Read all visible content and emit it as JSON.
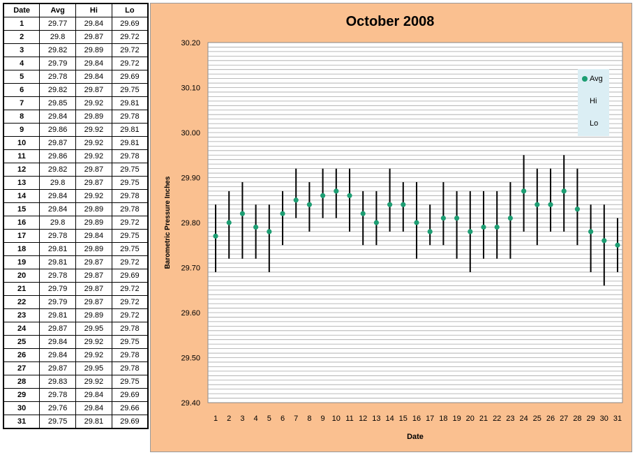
{
  "table": {
    "headers": [
      "Date",
      "Avg",
      "Hi",
      "Lo"
    ],
    "rows": [
      [
        "1",
        "29.77",
        "29.84",
        "29.69"
      ],
      [
        "2",
        "29.8",
        "29.87",
        "29.72"
      ],
      [
        "3",
        "29.82",
        "29.89",
        "29.72"
      ],
      [
        "4",
        "29.79",
        "29.84",
        "29.72"
      ],
      [
        "5",
        "29.78",
        "29.84",
        "29.69"
      ],
      [
        "6",
        "29.82",
        "29.87",
        "29.75"
      ],
      [
        "7",
        "29.85",
        "29.92",
        "29.81"
      ],
      [
        "8",
        "29.84",
        "29.89",
        "29.78"
      ],
      [
        "9",
        "29.86",
        "29.92",
        "29.81"
      ],
      [
        "10",
        "29.87",
        "29.92",
        "29.81"
      ],
      [
        "11",
        "29.86",
        "29.92",
        "29.78"
      ],
      [
        "12",
        "29.82",
        "29.87",
        "29.75"
      ],
      [
        "13",
        "29.8",
        "29.87",
        "29.75"
      ],
      [
        "14",
        "29.84",
        "29.92",
        "29.78"
      ],
      [
        "15",
        "29.84",
        "29.89",
        "29.78"
      ],
      [
        "16",
        "29.8",
        "29.89",
        "29.72"
      ],
      [
        "17",
        "29.78",
        "29.84",
        "29.75"
      ],
      [
        "18",
        "29.81",
        "29.89",
        "29.75"
      ],
      [
        "19",
        "29.81",
        "29.87",
        "29.72"
      ],
      [
        "20",
        "29.78",
        "29.87",
        "29.69"
      ],
      [
        "21",
        "29.79",
        "29.87",
        "29.72"
      ],
      [
        "22",
        "29.79",
        "29.87",
        "29.72"
      ],
      [
        "23",
        "29.81",
        "29.89",
        "29.72"
      ],
      [
        "24",
        "29.87",
        "29.95",
        "29.78"
      ],
      [
        "25",
        "29.84",
        "29.92",
        "29.75"
      ],
      [
        "26",
        "29.84",
        "29.92",
        "29.78"
      ],
      [
        "27",
        "29.87",
        "29.95",
        "29.78"
      ],
      [
        "28",
        "29.83",
        "29.92",
        "29.75"
      ],
      [
        "29",
        "29.78",
        "29.84",
        "29.69"
      ],
      [
        "30",
        "29.76",
        "29.84",
        "29.66"
      ],
      [
        "31",
        "29.75",
        "29.81",
        "29.69"
      ]
    ]
  },
  "chart_data": {
    "type": "scatter",
    "title": "October 2008",
    "xlabel": "Date",
    "ylabel": "Barometric Pressure Inches",
    "ylim": [
      29.4,
      30.2
    ],
    "yticks": [
      "29.40",
      "29.50",
      "29.60",
      "29.70",
      "29.80",
      "29.90",
      "30.00",
      "30.10",
      "30.20"
    ],
    "x": [
      1,
      2,
      3,
      4,
      5,
      6,
      7,
      8,
      9,
      10,
      11,
      12,
      13,
      14,
      15,
      16,
      17,
      18,
      19,
      20,
      21,
      22,
      23,
      24,
      25,
      26,
      27,
      28,
      29,
      30,
      31
    ],
    "series": [
      {
        "name": "Avg",
        "values": [
          29.77,
          29.8,
          29.82,
          29.79,
          29.78,
          29.82,
          29.85,
          29.84,
          29.86,
          29.87,
          29.86,
          29.82,
          29.8,
          29.84,
          29.84,
          29.8,
          29.78,
          29.81,
          29.81,
          29.78,
          29.79,
          29.79,
          29.81,
          29.87,
          29.84,
          29.84,
          29.87,
          29.83,
          29.78,
          29.76,
          29.75
        ]
      },
      {
        "name": "Hi",
        "values": [
          29.84,
          29.87,
          29.89,
          29.84,
          29.84,
          29.87,
          29.92,
          29.89,
          29.92,
          29.92,
          29.92,
          29.87,
          29.87,
          29.92,
          29.89,
          29.89,
          29.84,
          29.89,
          29.87,
          29.87,
          29.87,
          29.87,
          29.89,
          29.95,
          29.92,
          29.92,
          29.95,
          29.92,
          29.84,
          29.84,
          29.81
        ]
      },
      {
        "name": "Lo",
        "values": [
          29.69,
          29.72,
          29.72,
          29.72,
          29.69,
          29.75,
          29.81,
          29.78,
          29.81,
          29.81,
          29.78,
          29.75,
          29.75,
          29.78,
          29.78,
          29.72,
          29.75,
          29.75,
          29.72,
          29.69,
          29.72,
          29.72,
          29.72,
          29.78,
          29.75,
          29.78,
          29.78,
          29.75,
          29.69,
          29.66,
          29.69
        ]
      }
    ],
    "legend": [
      "Avg",
      "Hi",
      "Lo"
    ],
    "legend_position": "top-right",
    "grid": true,
    "colors": {
      "avg_marker": "#1d9e73",
      "hi_lo_bar": "#000000",
      "plot_bg": "#ffffff",
      "chart_bg": "#fac090",
      "legend_bg": "#dbeef4",
      "grid": "#a6a6a6"
    }
  }
}
